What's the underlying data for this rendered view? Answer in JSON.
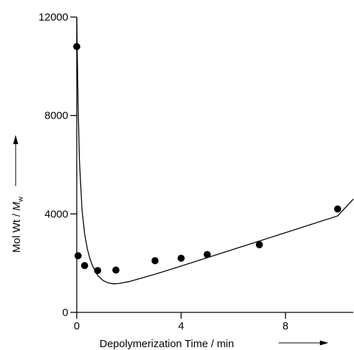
{
  "chart_data": {
    "type": "scatter",
    "xlabel": "Depolymerization Time / min",
    "ylabel_prefix": "Mol Wt / ",
    "ylabel_symbol": "M",
    "ylabel_subscript": "w",
    "xlim": [
      0,
      10.6
    ],
    "ylim": [
      0,
      12000
    ],
    "xticks": [
      0,
      4,
      8
    ],
    "yticks": [
      0,
      4000,
      8000,
      12000
    ],
    "x_tick_labels": [
      "0",
      "4",
      "8"
    ],
    "y_tick_labels": [
      "0",
      "4000",
      "8000",
      "12000"
    ],
    "series": [
      {
        "type": "scatter",
        "x": [
          0,
          0.05,
          0.3,
          0.8,
          1.5,
          3.0,
          4.0,
          5.0,
          7.0,
          10.0
        ],
        "y": [
          10800,
          2300,
          1900,
          1700,
          1720,
          2100,
          2200,
          2350,
          2750,
          4200
        ]
      },
      {
        "type": "line",
        "x": [
          0,
          0.05,
          0.1,
          0.2,
          0.3,
          0.4,
          0.5,
          0.6,
          0.8,
          1.0,
          1.2,
          1.4,
          1.6,
          2.0,
          3.0,
          4.0,
          5.0,
          6.0,
          7.0,
          8.0,
          9.0,
          10.0,
          10.6
        ],
        "y": [
          12000,
          8500,
          6200,
          4200,
          3200,
          2600,
          2200,
          1900,
          1500,
          1300,
          1200,
          1160,
          1170,
          1250,
          1550,
          1880,
          2220,
          2560,
          2900,
          3240,
          3580,
          3920,
          4600
        ]
      }
    ]
  }
}
